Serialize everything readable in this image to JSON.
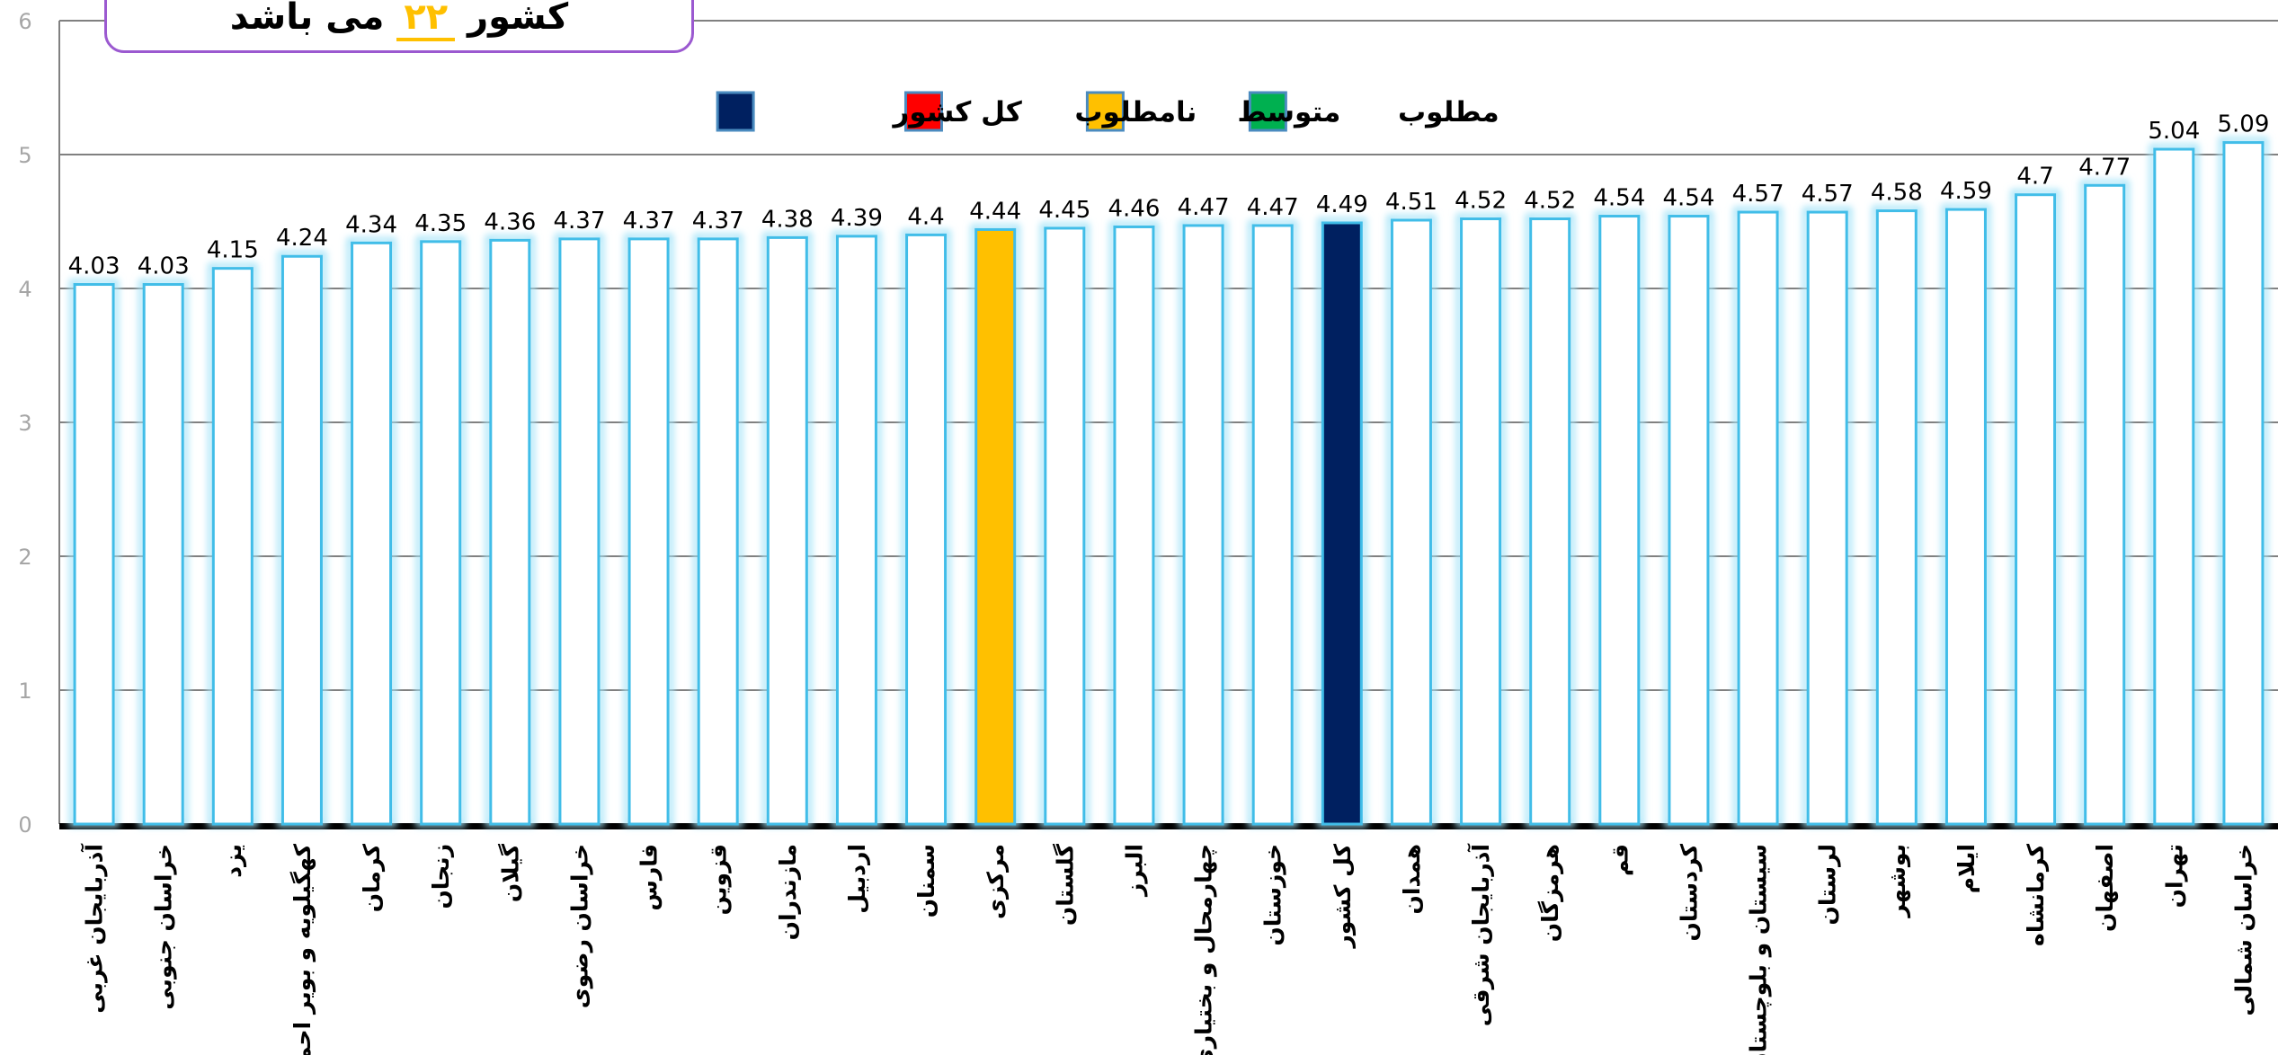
{
  "title": {
    "before": "کشور",
    "number": "۲۲",
    "after": "می باشد"
  },
  "colors": {
    "default_fill": "#ffffff",
    "default_stroke": "#41bde8",
    "glow": "#a6e4f8",
    "highlight_avg": "#ffc000",
    "highlight_country": "#002060",
    "legend_desired": "#00b050",
    "legend_undesired": "#ff0000",
    "gridline": "#808080",
    "axis_text": "#a6a6a6"
  },
  "chart_data": {
    "type": "bar",
    "ylim": [
      0,
      6
    ],
    "yticks": [
      0,
      1,
      2,
      3,
      4,
      5,
      6
    ],
    "grid": true,
    "legend_position": "top",
    "legend": [
      {
        "label": "مطلوب",
        "color": "#00b050"
      },
      {
        "label": "متوسط",
        "color": "#ffc000"
      },
      {
        "label": "نامطلوب",
        "color": "#ff0000"
      },
      {
        "label": "کل کشور",
        "color": "#002060"
      }
    ],
    "categories": [
      "آذربایجان غربی",
      "خراسان جنوبی",
      "یزد",
      "کهگیلویه و بویر احمد",
      "کرمان",
      "زنجان",
      "گیلان",
      "خراسان رضوی",
      "فارس",
      "قزوین",
      "مازندران",
      "اردبیل",
      "سمنان",
      "مرکزی",
      "گلستان",
      "البرز",
      "چهارمحال و بختیاری",
      "خوزستان",
      "کل کشور",
      "همدان",
      "آذربایجان شرقی",
      "هرمزگان",
      "قم",
      "کردستان",
      "سیستان و بلوچستان",
      "لرستان",
      "بوشهر",
      "ایلام",
      "کرمانشاه",
      "اصفهان",
      "تهران",
      "خراسان شمالی"
    ],
    "values": [
      4.03,
      4.03,
      4.15,
      4.24,
      4.34,
      4.35,
      4.36,
      4.37,
      4.37,
      4.37,
      4.38,
      4.39,
      4.4,
      4.44,
      4.45,
      4.46,
      4.47,
      4.47,
      4.49,
      4.51,
      4.52,
      4.52,
      4.54,
      4.54,
      4.57,
      4.57,
      4.58,
      4.59,
      4.7,
      4.77,
      5.04,
      5.09
    ],
    "value_labels": [
      "4.03",
      "4.03",
      "4.15",
      "4.24",
      "4.34",
      "4.35",
      "4.36",
      "4.37",
      "4.37",
      "4.37",
      "4.38",
      "4.39",
      "4.4",
      "4.44",
      "4.45",
      "4.46",
      "4.47",
      "4.47",
      "4.49",
      "4.51",
      "4.52",
      "4.52",
      "4.54",
      "4.54",
      "4.57",
      "4.57",
      "4.58",
      "4.59",
      "4.7",
      "4.77",
      "5.04",
      "5.09"
    ],
    "highlights": {
      "مرکزی": "highlight_avg",
      "کل کشور": "highlight_country"
    }
  }
}
